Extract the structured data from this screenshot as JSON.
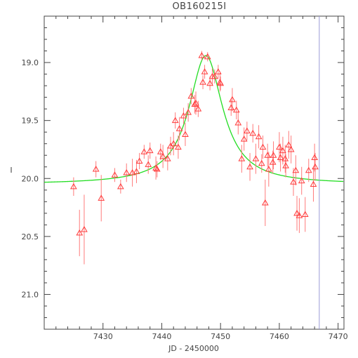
{
  "chart_data": {
    "type": "scatter",
    "title": "OB160215I",
    "xlabel": "JD - 2450000",
    "ylabel": "I",
    "xlim": [
      7420,
      7471
    ],
    "ylim": [
      21.3,
      18.6
    ],
    "y_inverted": true,
    "xticks": [
      7430,
      7440,
      7450,
      7460,
      7470
    ],
    "yticks": [
      19.0,
      19.5,
      20.0,
      20.5,
      21.0
    ],
    "ytick_labels": [
      "19.0",
      "19.5",
      "20.0",
      "20.5",
      "21.0"
    ],
    "grid": false,
    "colors": {
      "points": "#ff3b3b",
      "errorbars": "#ff7a7a",
      "model": "#22dd22",
      "marker_line": "#9a9ad6",
      "axes": "#444444"
    },
    "model": {
      "name": "",
      "t0": 7447.5,
      "baseline": 20.05,
      "peak": 18.94,
      "width": 3.5
    },
    "vertical_line_x": 7466.8,
    "series": [
      {
        "name": "",
        "marker": "triangle",
        "x": [
          7425.0,
          7426.0,
          7426.8,
          7428.8,
          7429.7,
          7432.0,
          7433.0,
          7434.0,
          7435.0,
          7435.7,
          7436.2,
          7437.0,
          7437.7,
          7438.0,
          7439.0,
          7439.2,
          7439.8,
          7440.2,
          7441.0,
          7441.5,
          7442.0,
          7442.3,
          7442.8,
          7443.0,
          7443.7,
          7444.0,
          7444.5,
          7445.0,
          7445.6,
          7445.8,
          7446.2,
          7446.8,
          7447.0,
          7447.3,
          7447.8,
          7448.2,
          7448.6,
          7449.0,
          7449.6,
          7449.9,
          7450.0,
          7451.8,
          7452.0,
          7452.7,
          7453.0,
          7453.6,
          7454.0,
          7454.5,
          7455.0,
          7455.5,
          7456.0,
          7456.5,
          7457.0,
          7457.2,
          7457.6,
          7458.0,
          7458.2,
          7458.9,
          7459.0,
          7460.0,
          7460.2,
          7460.6,
          7461.0,
          7461.1,
          7461.6,
          7462.0,
          7462.4,
          7462.8,
          7463.0,
          7463.4,
          7463.8,
          7464.4,
          7465.0,
          7465.8,
          7466.0,
          7466.1
        ],
        "y": [
          20.07,
          20.47,
          20.44,
          19.92,
          20.17,
          19.97,
          20.07,
          19.95,
          19.95,
          19.94,
          19.85,
          19.77,
          19.88,
          19.76,
          19.91,
          19.92,
          19.77,
          19.81,
          19.83,
          19.72,
          19.7,
          19.5,
          19.73,
          19.57,
          19.46,
          19.62,
          19.43,
          19.29,
          19.36,
          19.35,
          19.4,
          18.94,
          19.17,
          19.08,
          18.95,
          19.18,
          19.12,
          19.12,
          19.08,
          19.17,
          19.18,
          19.39,
          19.32,
          19.41,
          19.52,
          19.83,
          19.66,
          19.59,
          19.9,
          19.61,
          19.83,
          19.64,
          19.87,
          19.73,
          20.21,
          19.8,
          19.92,
          19.86,
          19.8,
          19.73,
          19.82,
          19.76,
          19.83,
          19.89,
          19.71,
          19.75,
          20.03,
          19.93,
          20.3,
          20.32,
          20.02,
          20.31,
          19.93,
          20.05,
          19.82,
          19.9
        ],
        "yerr": [
          0.08,
          0.2,
          0.3,
          0.07,
          0.2,
          0.06,
          0.06,
          0.08,
          0.12,
          0.1,
          0.07,
          0.06,
          0.08,
          0.07,
          0.1,
          0.07,
          0.07,
          0.1,
          0.1,
          0.08,
          0.1,
          0.07,
          0.1,
          0.1,
          0.07,
          0.1,
          0.08,
          0.07,
          0.08,
          0.1,
          0.07,
          0.04,
          0.06,
          0.06,
          0.04,
          0.06,
          0.07,
          0.06,
          0.06,
          0.08,
          0.06,
          0.07,
          0.1,
          0.08,
          0.1,
          0.12,
          0.1,
          0.08,
          0.12,
          0.08,
          0.13,
          0.1,
          0.08,
          0.1,
          0.2,
          0.1,
          0.15,
          0.1,
          0.12,
          0.13,
          0.12,
          0.12,
          0.12,
          0.1,
          0.12,
          0.12,
          0.12,
          0.13,
          0.15,
          0.15,
          0.12,
          0.15,
          0.1,
          0.15,
          0.12,
          0.12
        ]
      }
    ]
  }
}
